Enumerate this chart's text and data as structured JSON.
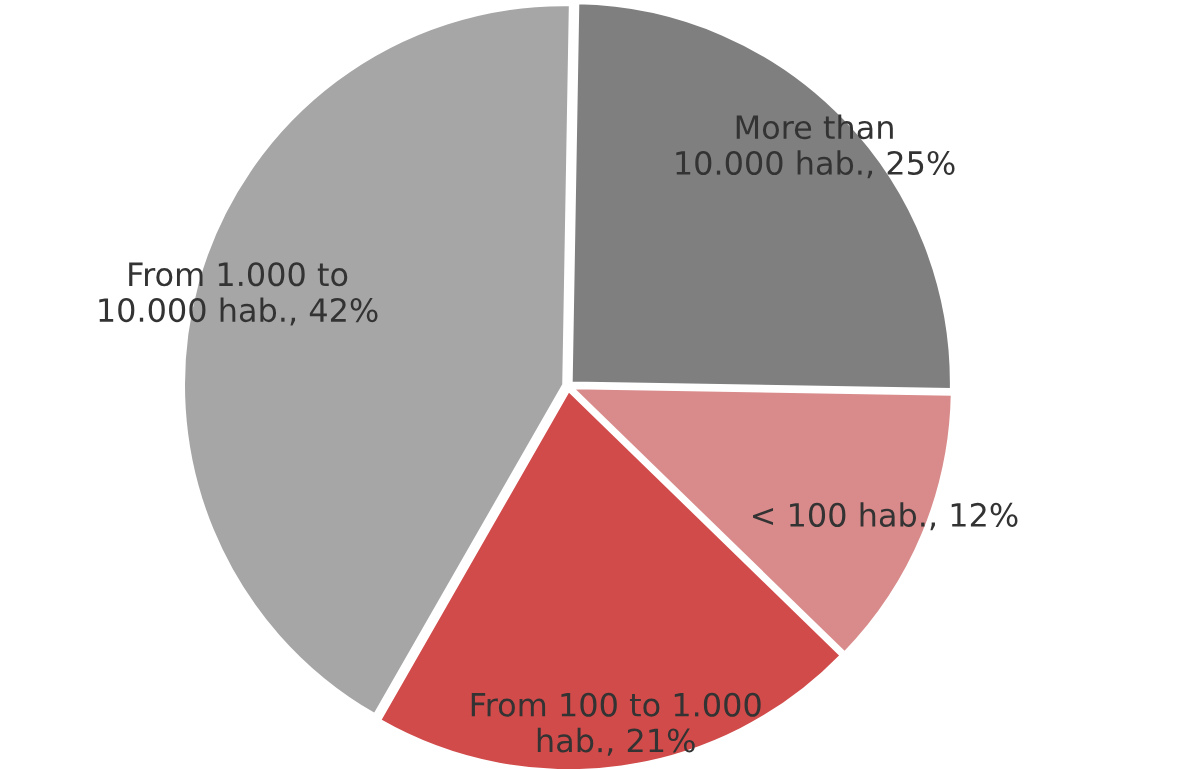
{
  "chart_data": {
    "type": "pie",
    "categories": [
      "More than 10.000 hab.",
      "< 100 hab.",
      "From 100 to 1.000 hab.",
      "From 1.000 to 10.000 hab."
    ],
    "values": [
      25,
      12,
      21,
      42
    ],
    "colors": [
      "#7f7f7f",
      "#d98b8b",
      "#d14b4b",
      "#a6a6a6"
    ],
    "value_labels": [
      "25%",
      "12%",
      "21%",
      "42%"
    ],
    "legend": false
  }
}
